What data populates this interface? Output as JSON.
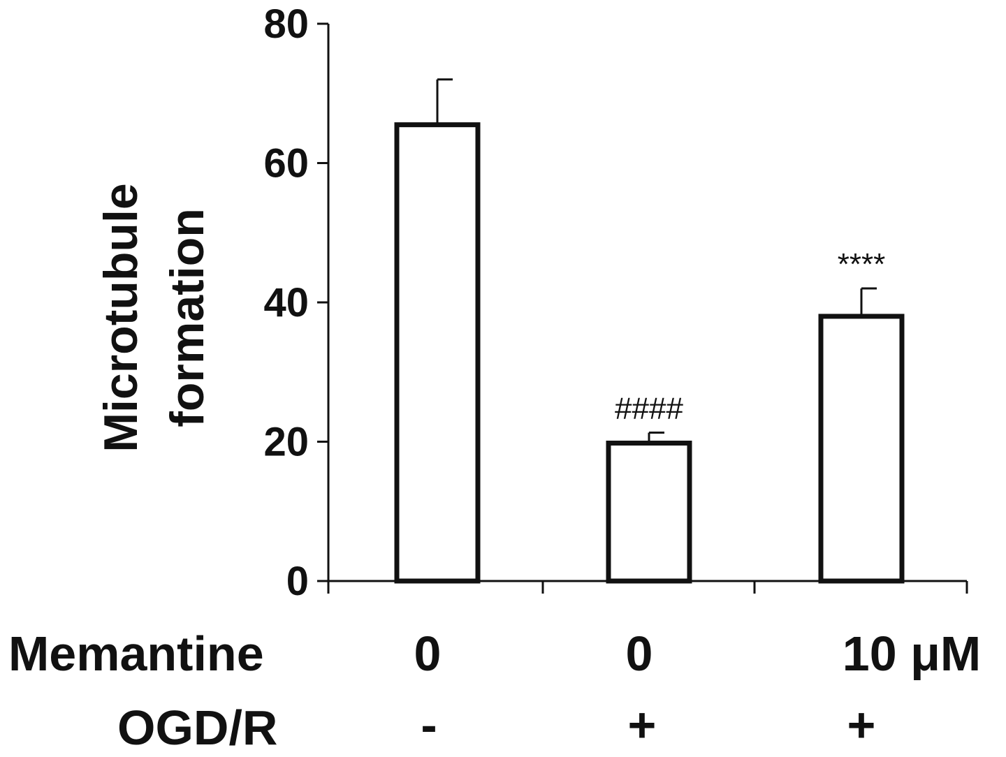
{
  "chart_data": {
    "type": "bar",
    "categories": [
      "0 / -",
      "0 / +",
      "10 μM / +"
    ],
    "values": [
      65.5,
      19.8,
      38.0
    ],
    "errors": [
      6.5,
      1.5,
      4.0
    ],
    "annotations": [
      "",
      "####",
      "****"
    ],
    "ylabel": "Microtubule formation",
    "ylabel_lines": [
      "Microtubule",
      "formation"
    ],
    "ylim": [
      0,
      80
    ],
    "yticks": [
      0,
      20,
      40,
      60,
      80
    ],
    "grid": false,
    "legend": "none",
    "row_labels": {
      "memantine": {
        "label": "Memantine",
        "values": [
          "0",
          "0",
          "10 μM"
        ]
      },
      "ogdr": {
        "label": "OGD/R",
        "values": [
          "-",
          "+",
          "+"
        ]
      }
    },
    "colors": {
      "bar_fill": "#ffffff",
      "bar_stroke": "#111111",
      "axis": "#111111",
      "text": "#111111"
    }
  }
}
